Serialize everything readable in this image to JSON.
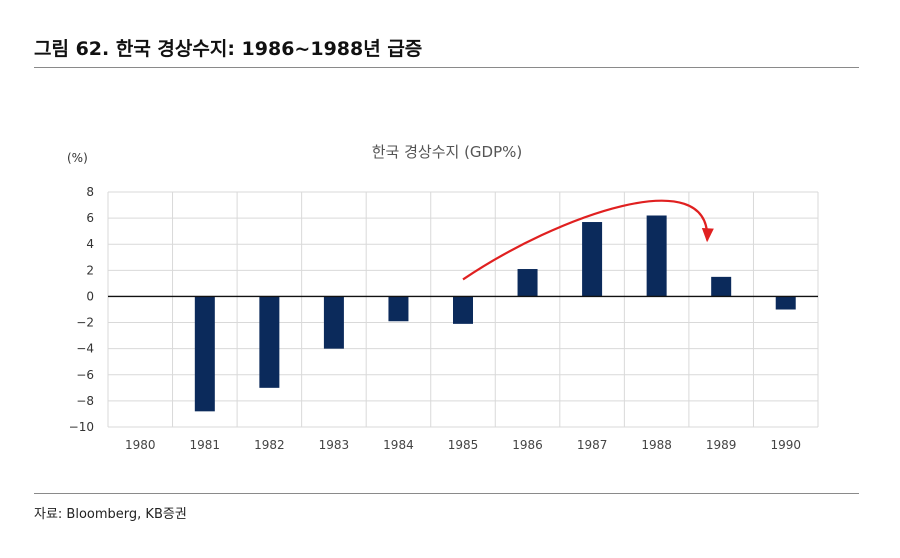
{
  "figure": {
    "title": "그림 62. 한국 경상수지: 1986~1988년 급증",
    "source": "자료: Bloomberg, KB증권"
  },
  "colors": {
    "bar": "#0b2a5b",
    "arrow": "#e02020",
    "grid": "#d9d9d9"
  },
  "chart_data": {
    "type": "bar",
    "title": "한국 경상수지 (GDP%)",
    "ylabel": "(%)",
    "xlabel": "",
    "categories": [
      "1980",
      "1981",
      "1982",
      "1983",
      "1984",
      "1985",
      "1986",
      "1987",
      "1988",
      "1989",
      "1990"
    ],
    "values": [
      null,
      -8.8,
      -7.0,
      -4.0,
      -1.9,
      -2.1,
      2.1,
      5.7,
      6.2,
      1.5,
      -1.0
    ],
    "ylim": [
      -10,
      8
    ],
    "yticks": [
      8,
      6,
      4,
      2,
      0,
      -2,
      -4,
      -6,
      -8,
      -10
    ],
    "ytick_labels": [
      "8",
      "6",
      "4",
      "2",
      "0",
      "−2",
      "−4",
      "−6",
      "−8",
      "−10"
    ],
    "grid": true,
    "annotation": "curved red arrow rising from 1985 over 1986–1988 and descending toward 1989"
  }
}
